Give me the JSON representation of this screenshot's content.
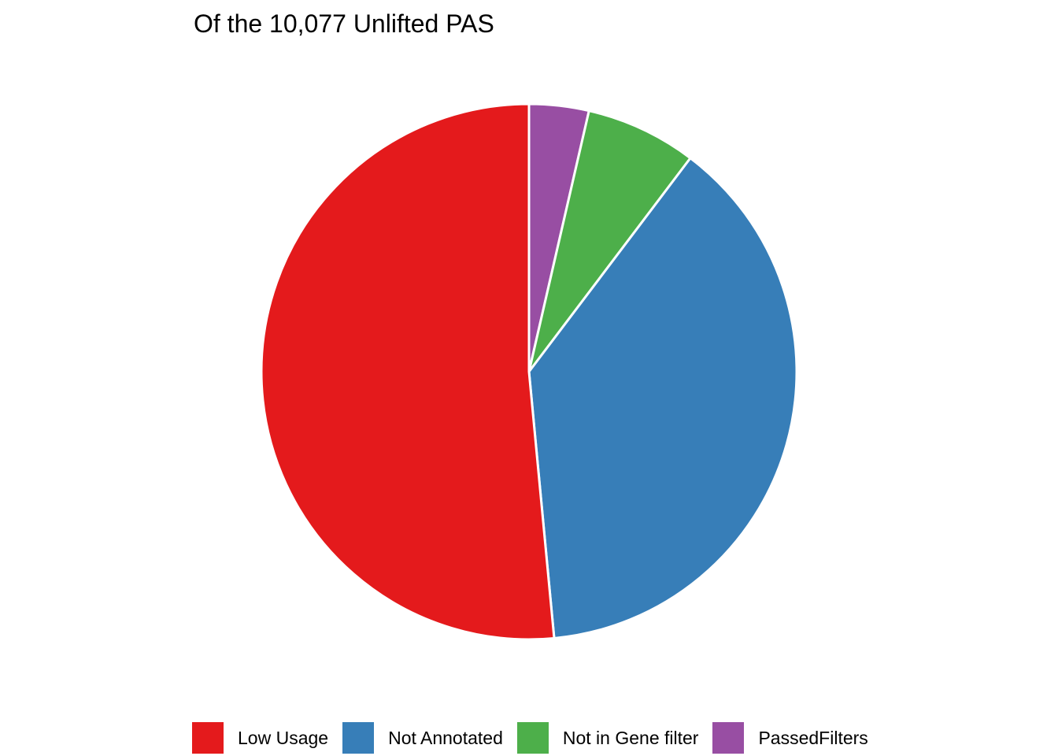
{
  "chart_data": {
    "type": "pie",
    "title": "Of the 10,077 Unlifted PAS",
    "legend_position": "bottom",
    "start_angle": "top, clockwise",
    "slices": [
      {
        "label": "PassedFilters",
        "value": 3.6,
        "color": "#984EA3"
      },
      {
        "label": "Not in Gene filter",
        "value": 6.7,
        "color": "#4DAF4A"
      },
      {
        "label": "Not Annotated",
        "value": 38.2,
        "color": "#377EB8"
      },
      {
        "label": "Low Usage",
        "value": 51.5,
        "color": "#E41A1C"
      }
    ],
    "legend": [
      {
        "label": "Low Usage",
        "color": "#E41A1C"
      },
      {
        "label": "Not Annotated",
        "color": "#377EB8"
      },
      {
        "label": "Not in Gene filter",
        "color": "#4DAF4A"
      },
      {
        "label": "PassedFilters",
        "color": "#984EA3"
      }
    ]
  }
}
